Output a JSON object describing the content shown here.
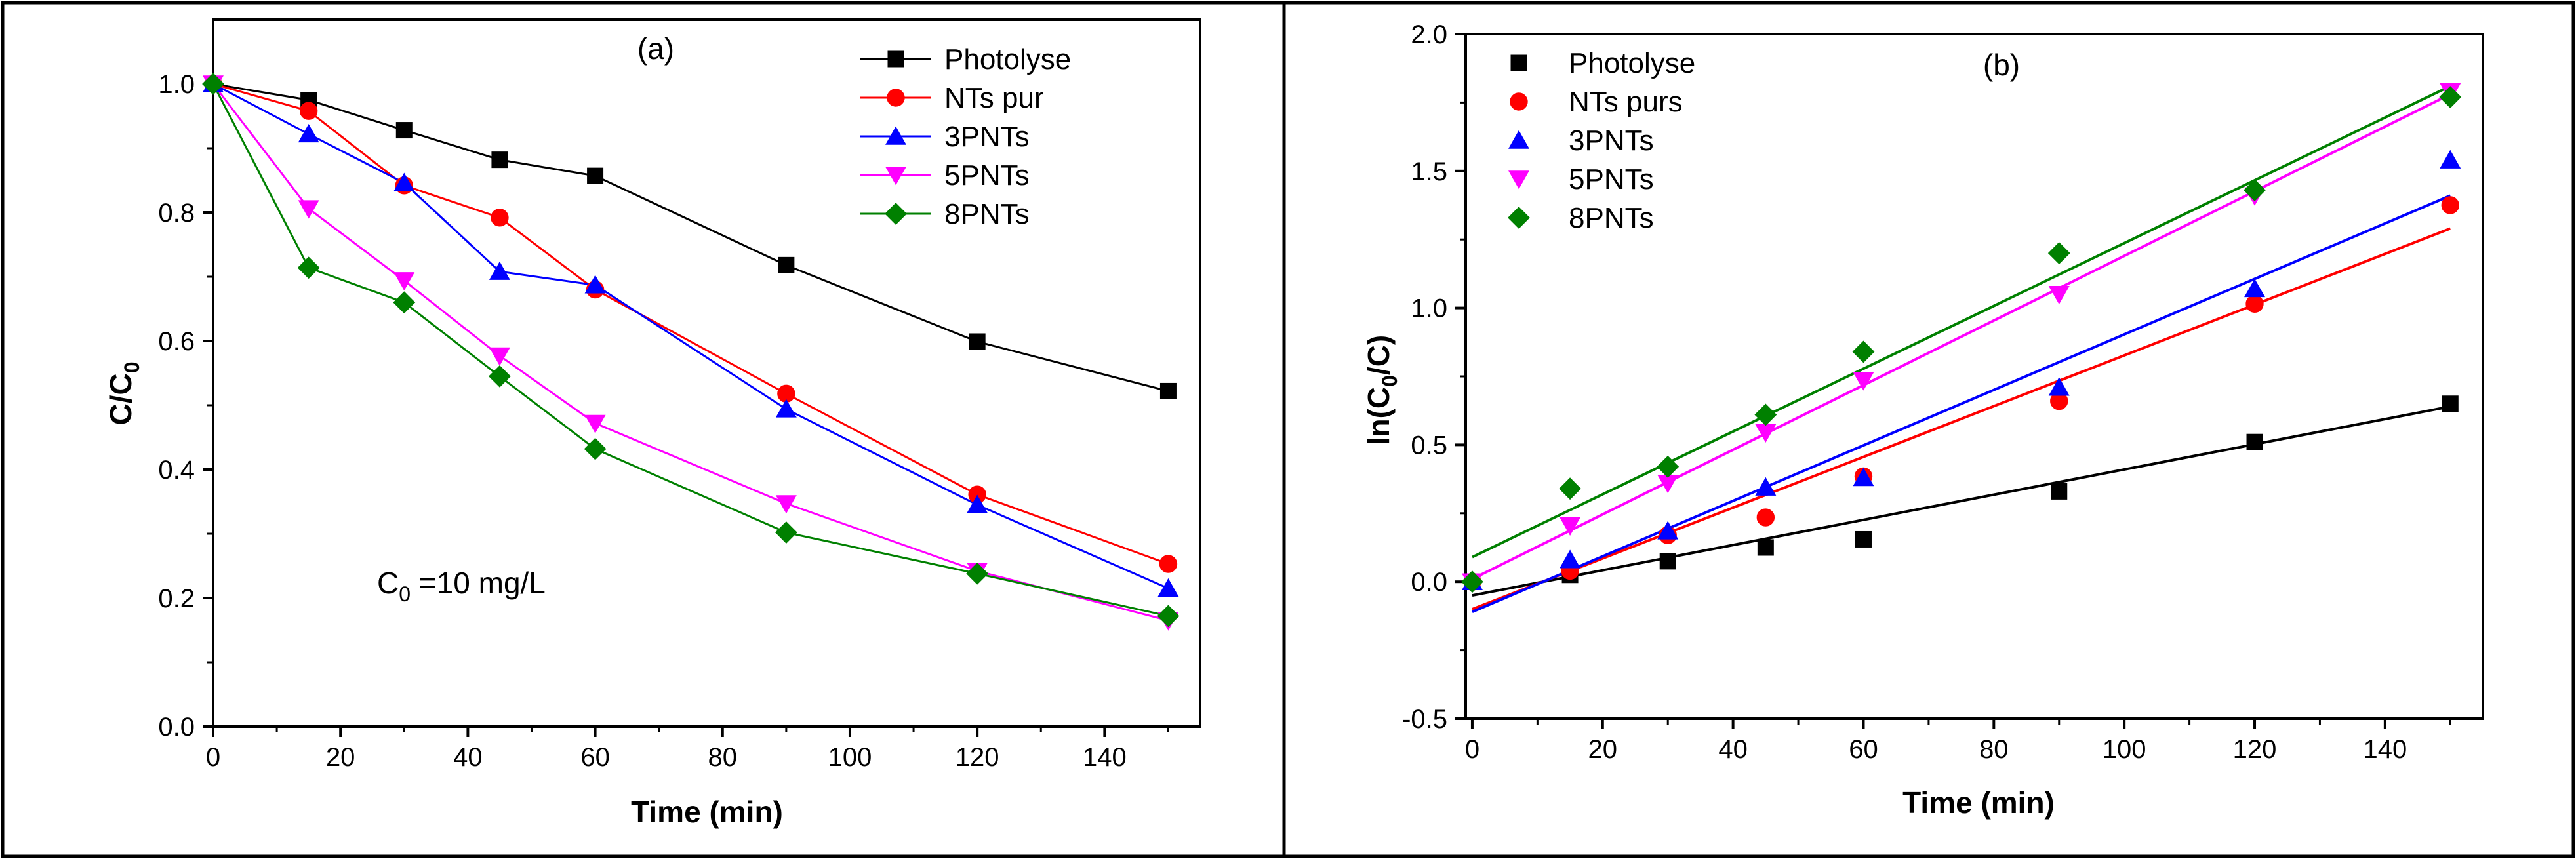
{
  "colors": {
    "photolyse": "#000000",
    "nts": "#ff0000",
    "p3": "#0000ff",
    "p5": "#ff00ff",
    "p8": "#008000",
    "axis": "#000000",
    "frame": "#000000"
  },
  "chart_data": [
    {
      "type": "line",
      "panel_label": "(a)",
      "title": "",
      "xlabel": "Time (min)",
      "ylabel_main": "C/C",
      "ylabel_sub": "0",
      "xlim": [
        0,
        155
      ],
      "ylim": [
        0,
        1.1
      ],
      "xticks": [
        0,
        20,
        40,
        60,
        80,
        100,
        120,
        140
      ],
      "xtick_labels": [
        "0",
        "20",
        "40",
        "60",
        "80",
        "100",
        "120",
        "140"
      ],
      "yticks": [
        0.0,
        0.2,
        0.4,
        0.6,
        0.8,
        1.0
      ],
      "ytick_labels": [
        "0.0",
        "0.2",
        "0.4",
        "0.6",
        "0.8",
        "1.0"
      ],
      "legend_position": "top-right",
      "annotation": {
        "main": "C",
        "sub": "0",
        "rest": " =10 mg/L"
      },
      "x": [
        0,
        15,
        30,
        45,
        60,
        90,
        120,
        150
      ],
      "series": [
        {
          "name": "Photolyse",
          "color_key": "photolyse",
          "marker": "square",
          "values": [
            1.0,
            0.975,
            0.928,
            0.882,
            0.857,
            0.718,
            0.599,
            0.522
          ]
        },
        {
          "name": "NTs pur",
          "color_key": "nts",
          "marker": "circle",
          "values": [
            1.0,
            0.958,
            0.842,
            0.792,
            0.68,
            0.518,
            0.361,
            0.253
          ]
        },
        {
          "name": "3PNTs",
          "color_key": "p3",
          "marker": "triangle-up",
          "values": [
            1.0,
            0.922,
            0.846,
            0.708,
            0.687,
            0.494,
            0.345,
            0.215
          ]
        },
        {
          "name": "5PNTs",
          "color_key": "p5",
          "marker": "triangle-down",
          "values": [
            1.0,
            0.806,
            0.694,
            0.577,
            0.472,
            0.347,
            0.242,
            0.165
          ]
        },
        {
          "name": "8PNTs",
          "color_key": "p8",
          "marker": "diamond",
          "values": [
            1.0,
            0.714,
            0.66,
            0.545,
            0.432,
            0.302,
            0.238,
            0.172
          ]
        }
      ]
    },
    {
      "type": "scatter",
      "panel_label": "(b)",
      "title": "",
      "xlabel": "Time (min)",
      "ylabel_pre": "ln(C",
      "ylabel_sub": "0",
      "ylabel_post": "/C)",
      "xlim": [
        -1,
        155
      ],
      "ylim": [
        -0.5,
        2.0
      ],
      "xticks": [
        0,
        20,
        40,
        60,
        80,
        100,
        120,
        140
      ],
      "xtick_labels": [
        "0",
        "20",
        "40",
        "60",
        "80",
        "100",
        "120",
        "140"
      ],
      "yticks": [
        -0.5,
        0.0,
        0.5,
        1.0,
        1.5,
        2.0
      ],
      "ytick_labels": [
        "-0.5",
        "0.0",
        "0.5",
        "1.0",
        "1.5",
        "2.0"
      ],
      "legend_position": "top-left",
      "x": [
        0,
        15,
        30,
        45,
        60,
        90,
        120,
        150
      ],
      "series": [
        {
          "name": "Photolyse",
          "color_key": "photolyse",
          "marker": "square",
          "values": [
            0.0,
            0.025,
            0.075,
            0.125,
            0.155,
            0.33,
            0.51,
            0.65
          ],
          "fit": [
            [
              0,
              -0.05
            ],
            [
              150,
              0.64
            ]
          ]
        },
        {
          "name": "NTs purs",
          "color_key": "nts",
          "marker": "circle",
          "values": [
            0.0,
            0.04,
            0.17,
            0.235,
            0.385,
            0.66,
            1.015,
            1.375
          ],
          "fit": [
            [
              0,
              -0.1
            ],
            [
              150,
              1.29
            ]
          ]
        },
        {
          "name": "3PNTs",
          "color_key": "p3",
          "marker": "triangle-up",
          "values": [
            0.0,
            0.08,
            0.185,
            0.345,
            0.38,
            0.71,
            1.07,
            1.54
          ],
          "fit": [
            [
              0,
              -0.11
            ],
            [
              150,
              1.41
            ]
          ]
        },
        {
          "name": "5PNTs",
          "color_key": "p5",
          "marker": "triangle-down",
          "values": [
            0.0,
            0.205,
            0.36,
            0.545,
            0.735,
            1.05,
            1.41,
            1.79
          ],
          "fit": [
            [
              0,
              0.01
            ],
            [
              150,
              1.78
            ]
          ]
        },
        {
          "name": "8PNTs",
          "color_key": "p8",
          "marker": "diamond",
          "values": [
            0.0,
            0.34,
            0.42,
            0.61,
            0.84,
            1.2,
            1.43,
            1.77
          ],
          "fit": [
            [
              0,
              0.09
            ],
            [
              150,
              1.81
            ]
          ]
        }
      ]
    }
  ]
}
